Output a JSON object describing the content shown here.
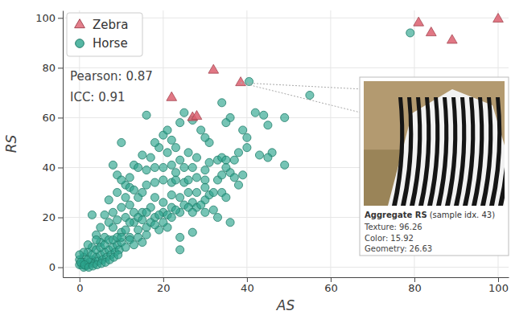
{
  "chart_data": {
    "type": "scatter",
    "x_label": "AS",
    "y_label": "RS",
    "xlim": [
      -4,
      102.5
    ],
    "ylim": [
      -4,
      103
    ],
    "xticks": [
      0,
      20,
      40,
      60,
      80,
      100
    ],
    "yticks": [
      0,
      20,
      40,
      60,
      80,
      100
    ],
    "grid": true,
    "legend": "upper left",
    "annotations": [
      "Pearson: 0.87",
      "ICC: 0.91"
    ],
    "inset": {
      "title": "Aggregate RS",
      "subtitle": "(sample idx. 43)",
      "rows": [
        {
          "label": "Texture:",
          "value": 96.26
        },
        {
          "label": "Color:",
          "value": 15.92
        },
        {
          "label": "Geometry:",
          "value": 26.63
        }
      ]
    },
    "series": [
      {
        "name": "Zebra",
        "color": "#dc5f6e",
        "marker": "triangle",
        "x": [
          22,
          27,
          28,
          32,
          38.5,
          81,
          84,
          89,
          100
        ],
        "values": [
          68,
          60,
          60.5,
          79,
          74,
          98,
          94,
          91,
          99.5
        ]
      },
      {
        "name": "Horse",
        "color": "#2ca58d",
        "marker": "circle",
        "x": [
          79,
          40.5,
          55,
          34,
          25,
          16,
          27,
          36,
          42,
          44,
          49,
          35,
          39,
          45,
          10,
          20,
          22,
          31,
          38,
          40,
          40,
          43,
          46,
          49,
          33,
          34,
          35,
          45,
          30,
          31,
          27,
          25,
          22,
          24,
          19,
          21,
          17,
          18,
          15,
          13,
          14,
          12,
          8,
          9,
          11,
          10,
          12,
          16,
          18,
          20,
          22,
          23,
          25,
          26,
          28,
          30,
          36,
          37,
          39,
          38,
          34,
          35,
          30,
          28,
          26,
          24,
          22,
          20,
          18,
          17,
          15,
          14,
          12,
          10,
          8,
          6,
          7,
          9,
          11,
          13,
          16,
          18,
          20,
          22,
          24,
          27,
          28,
          30,
          32,
          33,
          27,
          24,
          21,
          19,
          16,
          14,
          12,
          10,
          8,
          6,
          5,
          4,
          3,
          2,
          1,
          0,
          0.5,
          1,
          1.5,
          2,
          2.5,
          3,
          3.5,
          4,
          4.5,
          5,
          5.5,
          6,
          6.5,
          7,
          7.5,
          8,
          8.5,
          9,
          9.5,
          10,
          11,
          12,
          13,
          14,
          15,
          3,
          0,
          1,
          2,
          3,
          4,
          5,
          6,
          7,
          8,
          9,
          10,
          11,
          12,
          13,
          14,
          15,
          16,
          17,
          18,
          19,
          20,
          21,
          22,
          23,
          25,
          26,
          27,
          29,
          30,
          31,
          32,
          33,
          34,
          28,
          26,
          23,
          21,
          18,
          29,
          30,
          24,
          35,
          37,
          16,
          15,
          13,
          11,
          9,
          7,
          5,
          4,
          2,
          1,
          0,
          0.3,
          1.2,
          2.2,
          3.2,
          4.2,
          5.2,
          6.2,
          7.2,
          8.2,
          9.2,
          20,
          23,
          24,
          36
        ],
        "values": [
          94,
          74.5,
          69,
          66,
          62,
          61,
          59,
          60,
          62,
          61,
          60,
          58,
          55,
          57,
          50,
          53,
          51,
          50,
          46,
          52,
          48,
          45,
          46,
          41,
          43,
          44,
          43,
          44,
          39,
          42,
          40,
          40,
          41,
          43,
          48,
          46,
          44,
          40,
          45,
          41,
          40,
          36,
          41,
          37,
          33,
          35,
          32,
          39,
          34,
          35,
          34,
          35,
          34,
          35,
          36,
          35,
          38,
          36,
          37,
          33,
          30,
          28,
          32,
          30,
          30,
          28,
          29,
          26,
          28,
          24,
          22,
          28,
          25,
          24,
          22,
          21,
          27,
          19,
          20,
          18,
          16,
          20,
          22,
          24,
          22,
          26,
          24,
          27,
          23,
          20,
          14,
          12,
          16,
          15,
          13,
          15,
          12,
          14,
          16,
          12,
          10,
          13,
          8,
          6,
          4,
          3,
          1,
          2,
          0.5,
          1,
          2,
          3,
          1.5,
          4,
          2.5,
          5,
          3,
          6,
          4,
          7,
          5,
          8,
          6,
          9,
          7,
          10,
          8,
          11,
          9,
          12,
          10,
          21,
          1,
          0,
          3,
          5,
          7,
          8,
          9,
          11,
          11,
          12,
          12,
          15,
          18,
          22,
          20,
          19,
          22,
          18,
          17,
          21,
          18,
          21,
          20,
          23,
          25,
          24,
          22,
          25,
          22,
          29,
          30,
          35,
          37,
          44,
          46,
          48,
          55,
          50,
          55,
          52,
          58,
          40,
          43,
          33,
          30,
          31,
          28,
          30,
          18,
          16,
          11,
          9,
          6,
          5,
          2,
          1,
          0,
          0.5,
          1,
          1.5,
          2,
          3,
          4,
          5,
          40,
          38,
          7,
          18
        ]
      }
    ]
  }
}
